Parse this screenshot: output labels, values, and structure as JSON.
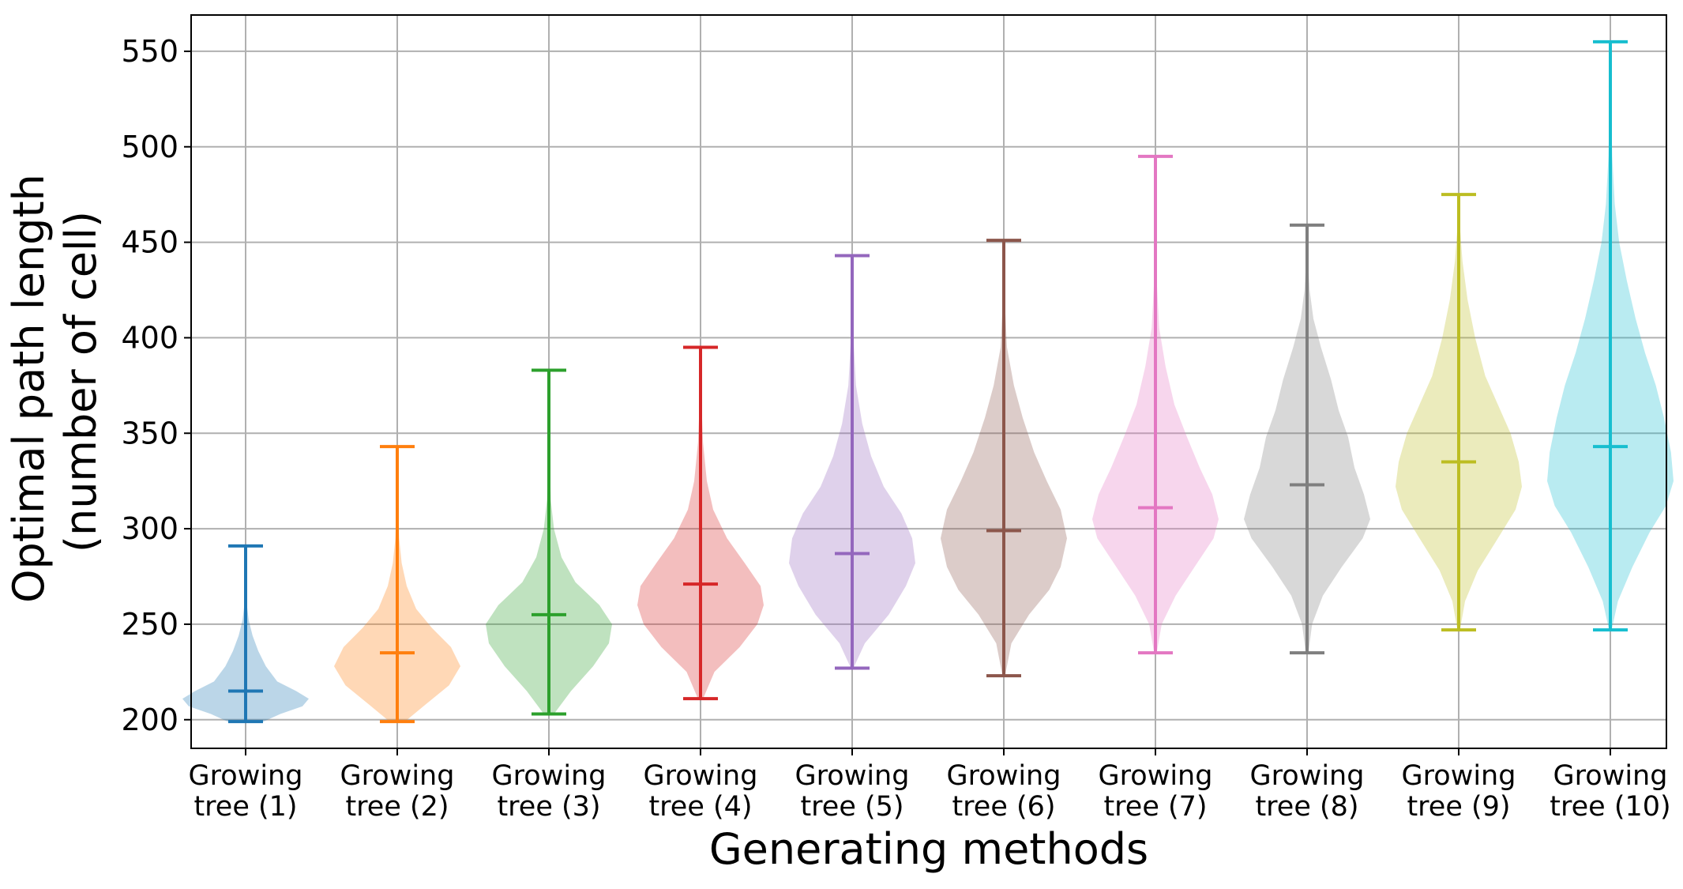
{
  "chart_data": {
    "type": "violin",
    "xlabel": "Generating methods",
    "ylabel": [
      "Optimal path length",
      "(number of cell)"
    ],
    "ylim": [
      185,
      569
    ],
    "yticks": [
      200,
      250,
      300,
      350,
      400,
      450,
      500,
      550
    ],
    "grid": true,
    "categories": [
      [
        "Growing",
        "tree (1)"
      ],
      [
        "Growing",
        "tree (2)"
      ],
      [
        "Growing",
        "tree (3)"
      ],
      [
        "Growing",
        "tree (4)"
      ],
      [
        "Growing",
        "tree (5)"
      ],
      [
        "Growing",
        "tree (6)"
      ],
      [
        "Growing",
        "tree (7)"
      ],
      [
        "Growing",
        "tree (8)"
      ],
      [
        "Growing",
        "tree (9)"
      ],
      [
        "Growing",
        "tree (10)"
      ]
    ],
    "series": [
      {
        "color": "#1f77b4",
        "min": 199,
        "max": 291,
        "mean": 215,
        "profile": [
          [
            199,
            0.28
          ],
          [
            203,
            0.55
          ],
          [
            207,
            0.9
          ],
          [
            211,
            1.0
          ],
          [
            215,
            0.8
          ],
          [
            220,
            0.5
          ],
          [
            228,
            0.32
          ],
          [
            236,
            0.2
          ],
          [
            244,
            0.11
          ],
          [
            252,
            0.05
          ],
          [
            260,
            0.02
          ],
          [
            275,
            0.008
          ],
          [
            291,
            0.003
          ]
        ]
      },
      {
        "color": "#ff7f0e",
        "min": 199,
        "max": 343,
        "mean": 235,
        "profile": [
          [
            199,
            0.12
          ],
          [
            208,
            0.45
          ],
          [
            218,
            0.82
          ],
          [
            228,
            1.0
          ],
          [
            238,
            0.85
          ],
          [
            248,
            0.55
          ],
          [
            258,
            0.3
          ],
          [
            270,
            0.15
          ],
          [
            282,
            0.07
          ],
          [
            295,
            0.03
          ],
          [
            315,
            0.01
          ],
          [
            343,
            0.003
          ]
        ]
      },
      {
        "color": "#2ca02c",
        "min": 203,
        "max": 383,
        "mean": 255,
        "profile": [
          [
            203,
            0.08
          ],
          [
            215,
            0.35
          ],
          [
            228,
            0.7
          ],
          [
            240,
            0.95
          ],
          [
            250,
            1.0
          ],
          [
            260,
            0.8
          ],
          [
            272,
            0.42
          ],
          [
            285,
            0.2
          ],
          [
            300,
            0.08
          ],
          [
            315,
            0.03
          ],
          [
            340,
            0.01
          ],
          [
            383,
            0.003
          ]
        ]
      },
      {
        "color": "#d62728",
        "min": 211,
        "max": 395,
        "mean": 271,
        "profile": [
          [
            211,
            0.04
          ],
          [
            225,
            0.22
          ],
          [
            238,
            0.62
          ],
          [
            250,
            0.9
          ],
          [
            260,
            1.0
          ],
          [
            270,
            0.95
          ],
          [
            282,
            0.7
          ],
          [
            295,
            0.42
          ],
          [
            310,
            0.2
          ],
          [
            325,
            0.1
          ],
          [
            345,
            0.04
          ],
          [
            370,
            0.01
          ],
          [
            395,
            0.003
          ]
        ]
      },
      {
        "color": "#9467bd",
        "min": 227,
        "max": 443,
        "mean": 287,
        "profile": [
          [
            227,
            0.02
          ],
          [
            240,
            0.2
          ],
          [
            255,
            0.58
          ],
          [
            270,
            0.85
          ],
          [
            282,
            1.0
          ],
          [
            295,
            0.95
          ],
          [
            308,
            0.78
          ],
          [
            322,
            0.5
          ],
          [
            338,
            0.3
          ],
          [
            355,
            0.16
          ],
          [
            375,
            0.06
          ],
          [
            400,
            0.02
          ],
          [
            443,
            0.003
          ]
        ]
      },
      {
        "color": "#8c564b",
        "min": 223,
        "max": 451,
        "mean": 299,
        "profile": [
          [
            223,
            0.02
          ],
          [
            240,
            0.12
          ],
          [
            255,
            0.4
          ],
          [
            268,
            0.72
          ],
          [
            280,
            0.9
          ],
          [
            295,
            1.0
          ],
          [
            310,
            0.9
          ],
          [
            325,
            0.68
          ],
          [
            340,
            0.48
          ],
          [
            358,
            0.3
          ],
          [
            375,
            0.16
          ],
          [
            395,
            0.05
          ],
          [
            420,
            0.015
          ],
          [
            451,
            0.003
          ]
        ]
      },
      {
        "color": "#e377c2",
        "min": 235,
        "max": 495,
        "mean": 311,
        "profile": [
          [
            235,
            0.02
          ],
          [
            250,
            0.1
          ],
          [
            265,
            0.32
          ],
          [
            280,
            0.62
          ],
          [
            295,
            0.92
          ],
          [
            305,
            1.0
          ],
          [
            318,
            0.9
          ],
          [
            332,
            0.7
          ],
          [
            348,
            0.5
          ],
          [
            365,
            0.3
          ],
          [
            385,
            0.16
          ],
          [
            405,
            0.06
          ],
          [
            430,
            0.02
          ],
          [
            460,
            0.006
          ],
          [
            495,
            0.002
          ]
        ]
      },
      {
        "color": "#7f7f7f",
        "min": 235,
        "max": 459,
        "mean": 323,
        "profile": [
          [
            235,
            0.02
          ],
          [
            250,
            0.08
          ],
          [
            265,
            0.25
          ],
          [
            280,
            0.55
          ],
          [
            295,
            0.88
          ],
          [
            305,
            1.0
          ],
          [
            318,
            0.9
          ],
          [
            332,
            0.75
          ],
          [
            348,
            0.65
          ],
          [
            362,
            0.5
          ],
          [
            378,
            0.38
          ],
          [
            395,
            0.22
          ],
          [
            410,
            0.1
          ],
          [
            425,
            0.04
          ],
          [
            440,
            0.015
          ],
          [
            459,
            0.003
          ]
        ]
      },
      {
        "color": "#bcbd22",
        "min": 247,
        "max": 475,
        "mean": 335,
        "profile": [
          [
            247,
            0.02
          ],
          [
            262,
            0.1
          ],
          [
            278,
            0.3
          ],
          [
            295,
            0.62
          ],
          [
            310,
            0.9
          ],
          [
            322,
            1.0
          ],
          [
            335,
            0.95
          ],
          [
            350,
            0.82
          ],
          [
            365,
            0.62
          ],
          [
            380,
            0.42
          ],
          [
            400,
            0.26
          ],
          [
            420,
            0.14
          ],
          [
            440,
            0.06
          ],
          [
            458,
            0.02
          ],
          [
            475,
            0.005
          ]
        ]
      },
      {
        "color": "#17becf",
        "min": 247,
        "max": 555,
        "mean": 343,
        "profile": [
          [
            247,
            0.02
          ],
          [
            262,
            0.12
          ],
          [
            280,
            0.35
          ],
          [
            298,
            0.62
          ],
          [
            312,
            0.88
          ],
          [
            325,
            1.0
          ],
          [
            340,
            0.96
          ],
          [
            358,
            0.85
          ],
          [
            375,
            0.72
          ],
          [
            392,
            0.55
          ],
          [
            410,
            0.4
          ],
          [
            430,
            0.26
          ],
          [
            450,
            0.14
          ],
          [
            470,
            0.07
          ],
          [
            495,
            0.03
          ],
          [
            525,
            0.01
          ],
          [
            555,
            0.003
          ]
        ]
      }
    ]
  }
}
